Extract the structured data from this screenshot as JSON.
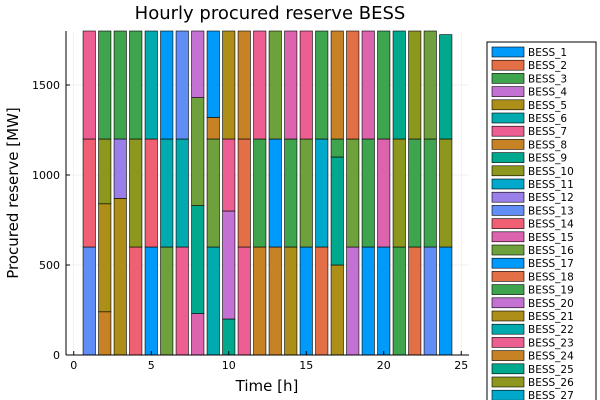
{
  "chart_data": {
    "type": "bar",
    "stacked": true,
    "title": "Hourly procured reserve BESS",
    "xlabel": "Time [h]",
    "ylabel": "Procured reserve [MW]",
    "xlim": [
      -0.5,
      25.5
    ],
    "ylim": [
      0,
      1800
    ],
    "xticks": [
      0,
      5,
      10,
      15,
      20,
      25
    ],
    "yticks": [
      0,
      500,
      1000,
      1500
    ],
    "grid": true,
    "legend_position": "outer-right",
    "hours": [
      1,
      2,
      3,
      4,
      5,
      6,
      7,
      8,
      9,
      10,
      11,
      12,
      13,
      14,
      15,
      16,
      17,
      18,
      19,
      20,
      21,
      22,
      23,
      24
    ],
    "series_names": [
      "BESS_1",
      "BESS_2",
      "BESS_3",
      "BESS_4",
      "BESS_5",
      "BESS_6",
      "BESS_7",
      "BESS_8",
      "BESS_9",
      "BESS_10",
      "BESS_11",
      "BESS_12",
      "BESS_13",
      "BESS_14",
      "BESS_15",
      "BESS_16",
      "BESS_17",
      "BESS_18",
      "BESS_19",
      "BESS_20",
      "BESS_21",
      "BESS_22",
      "BESS_23",
      "BESS_24",
      "BESS_25",
      "BESS_26",
      "BESS_27"
    ],
    "series_colors": [
      "#009AFA",
      "#E36F47",
      "#3EA44E",
      "#C371D2",
      "#AC8E18",
      "#00AAAE",
      "#ED5E93",
      "#C68225",
      "#00A98D",
      "#8E971D",
      "#00A8CB",
      "#9B7FE9",
      "#618DF6",
      "#F16072",
      "#DC63AD",
      "#6EA03B",
      "#009AFA",
      "#E36F47",
      "#3EA44E",
      "#C371D2",
      "#AC8E18",
      "#00AAAE",
      "#ED5E93",
      "#C68225",
      "#00A98D",
      "#8E971D",
      "#00A8CB"
    ],
    "stacks": [
      [
        {
          "s": 13,
          "v": 600
        },
        {
          "s": 14,
          "v": 600
        },
        {
          "s": 7,
          "v": 600
        }
      ],
      [
        {
          "s": 8,
          "v": 240
        },
        {
          "s": 5,
          "v": 600
        },
        {
          "s": 10,
          "v": 360
        },
        {
          "s": 3,
          "v": 600
        }
      ],
      [
        {
          "s": 5,
          "v": 870
        },
        {
          "s": 12,
          "v": 330
        },
        {
          "s": 3,
          "v": 600
        }
      ],
      [
        {
          "s": 14,
          "v": 600
        },
        {
          "s": 10,
          "v": 600
        },
        {
          "s": 3,
          "v": 600
        }
      ],
      [
        {
          "s": 1,
          "v": 600
        },
        {
          "s": 14,
          "v": 600
        },
        {
          "s": 6,
          "v": 600
        }
      ],
      [
        {
          "s": 16,
          "v": 600
        },
        {
          "s": 6,
          "v": 600
        },
        {
          "s": 1,
          "v": 600
        }
      ],
      [
        {
          "s": 7,
          "v": 600
        },
        {
          "s": 6,
          "v": 600
        },
        {
          "s": 13,
          "v": 600
        }
      ],
      [
        {
          "s": 15,
          "v": 230
        },
        {
          "s": 9,
          "v": 600
        },
        {
          "s": 16,
          "v": 600
        },
        {
          "s": 4,
          "v": 370
        }
      ],
      [
        {
          "s": 6,
          "v": 600
        },
        {
          "s": 16,
          "v": 600
        },
        {
          "s": 8,
          "v": 120
        },
        {
          "s": 1,
          "v": 480
        }
      ],
      [
        {
          "s": 9,
          "v": 200
        },
        {
          "s": 4,
          "v": 600
        },
        {
          "s": 7,
          "v": 400
        },
        {
          "s": 5,
          "v": 600
        }
      ],
      [
        {
          "s": 7,
          "v": 600
        },
        {
          "s": 2,
          "v": 600
        },
        {
          "s": 8,
          "v": 600
        }
      ],
      [
        {
          "s": 8,
          "v": 600
        },
        {
          "s": 3,
          "v": 600
        },
        {
          "s": 7,
          "v": 600
        }
      ],
      [
        {
          "s": 8,
          "v": 600
        },
        {
          "s": 1,
          "v": 600
        },
        {
          "s": 16,
          "v": 600
        }
      ],
      [
        {
          "s": 5,
          "v": 600
        },
        {
          "s": 3,
          "v": 600
        },
        {
          "s": 15,
          "v": 600
        }
      ],
      [
        {
          "s": 1,
          "v": 600
        },
        {
          "s": 16,
          "v": 600
        },
        {
          "s": 7,
          "v": 600
        }
      ],
      [
        {
          "s": 2,
          "v": 600
        },
        {
          "s": 11,
          "v": 600
        },
        {
          "s": 3,
          "v": 600
        }
      ],
      [
        {
          "s": 5,
          "v": 500
        },
        {
          "s": 9,
          "v": 600
        },
        {
          "s": 3,
          "v": 100
        },
        {
          "s": 8,
          "v": 600
        }
      ],
      [
        {
          "s": 4,
          "v": 600
        },
        {
          "s": 16,
          "v": 600
        },
        {
          "s": 2,
          "v": 600
        }
      ],
      [
        {
          "s": 1,
          "v": 600
        },
        {
          "s": 3,
          "v": 600
        },
        {
          "s": 15,
          "v": 600
        }
      ],
      [
        {
          "s": 1,
          "v": 600
        },
        {
          "s": 15,
          "v": 600
        },
        {
          "s": 3,
          "v": 600
        }
      ],
      [
        {
          "s": 3,
          "v": 600
        },
        {
          "s": 10,
          "v": 600
        },
        {
          "s": 9,
          "v": 600
        }
      ],
      [
        {
          "s": 2,
          "v": 600
        },
        {
          "s": 3,
          "v": 600
        },
        {
          "s": 10,
          "v": 600
        }
      ],
      [
        {
          "s": 13,
          "v": 600
        },
        {
          "s": 3,
          "v": 600
        },
        {
          "s": 16,
          "v": 600
        }
      ],
      [
        {
          "s": 1,
          "v": 600
        },
        {
          "s": 10,
          "v": 600
        },
        {
          "s": 9,
          "v": 580
        }
      ]
    ]
  }
}
